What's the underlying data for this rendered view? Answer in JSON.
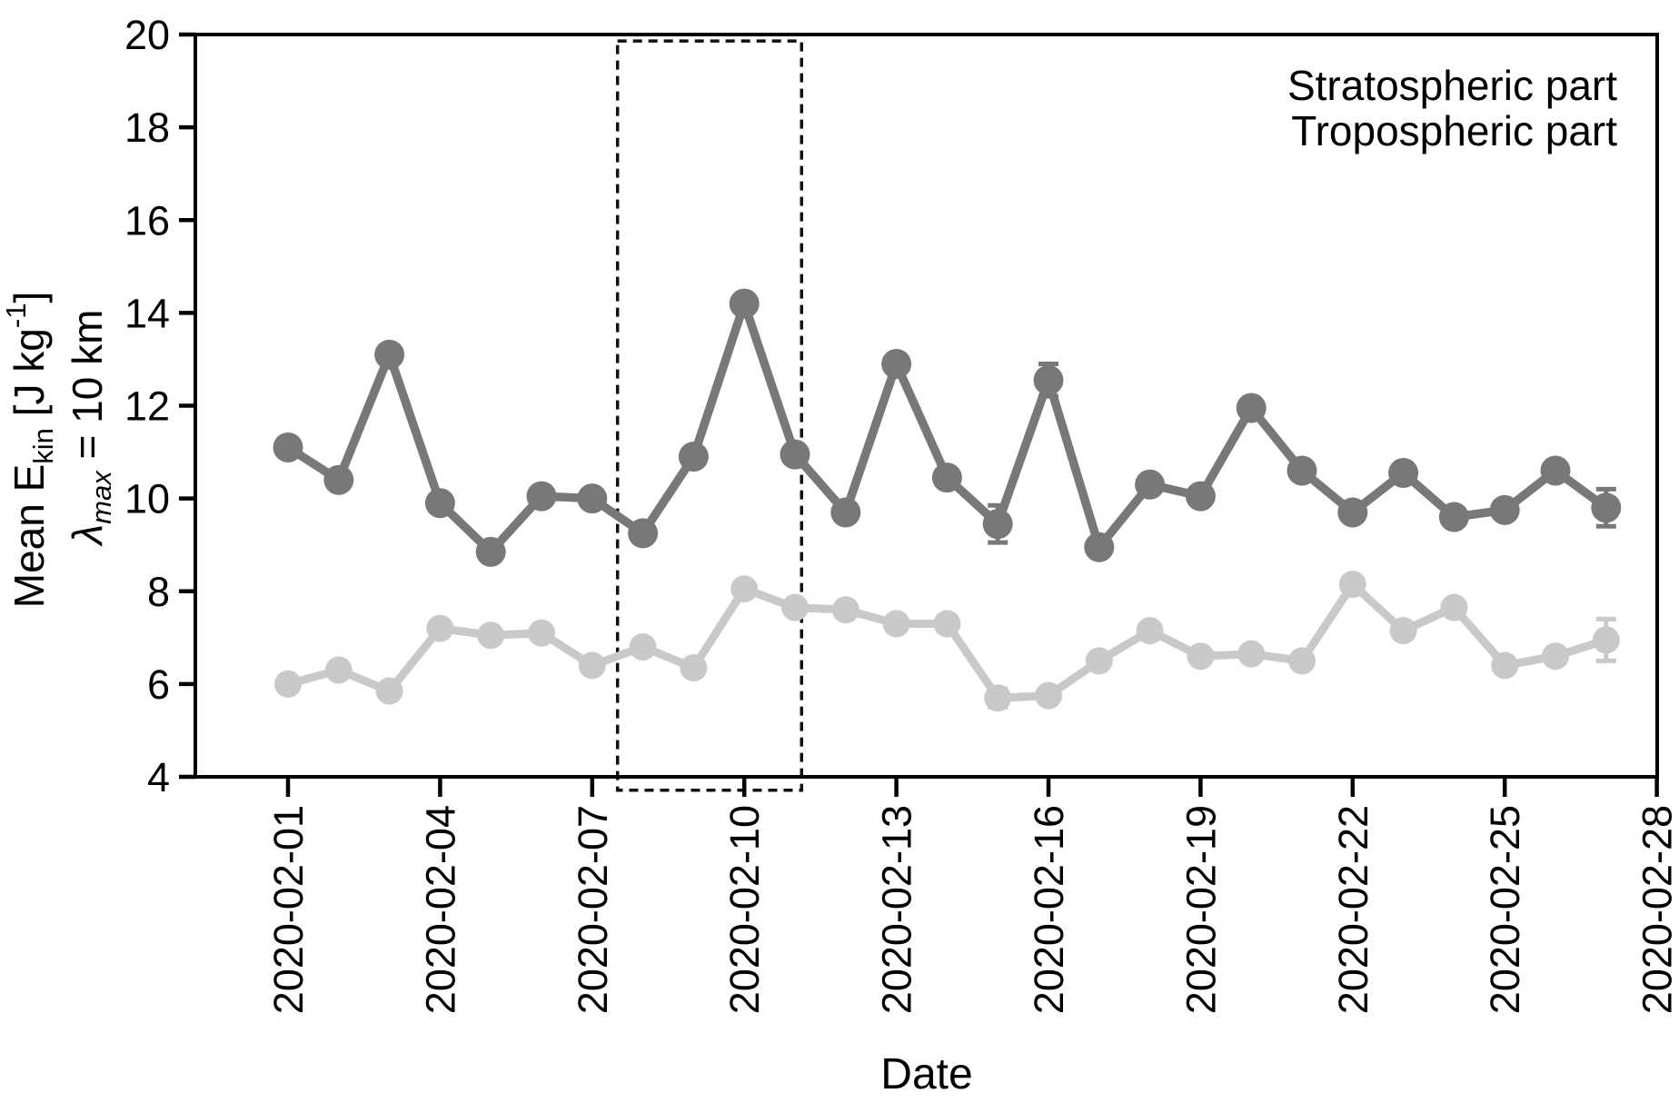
{
  "chart_data": {
    "type": "line",
    "title": "",
    "xlabel": "Date",
    "ylabel": {
      "line1_prefix": "Mean E",
      "line1_sub": "kin",
      "line1_mid": " [J kg",
      "line1_sup": "-1",
      "line1_suffix": "]",
      "line2_symbol": "λ",
      "line2_sub": "max",
      "line2_rest": " = 10 km"
    },
    "x_dates": [
      "2020-02-01",
      "2020-02-02",
      "2020-02-03",
      "2020-02-04",
      "2020-02-05",
      "2020-02-06",
      "2020-02-07",
      "2020-02-08",
      "2020-02-09",
      "2020-02-10",
      "2020-02-11",
      "2020-02-12",
      "2020-02-13",
      "2020-02-14",
      "2020-02-15",
      "2020-02-16",
      "2020-02-17",
      "2020-02-18",
      "2020-02-19",
      "2020-02-20",
      "2020-02-21",
      "2020-02-22",
      "2020-02-23",
      "2020-02-24",
      "2020-02-25",
      "2020-02-26",
      "2020-02-27"
    ],
    "xtick_labels": [
      "2020-02-01",
      "2020-02-04",
      "2020-02-07",
      "2020-02-10",
      "2020-02-13",
      "2020-02-16",
      "2020-02-19",
      "2020-02-22",
      "2020-02-25",
      "2020-02-28"
    ],
    "xtick_days": [
      1,
      4,
      7,
      10,
      13,
      16,
      19,
      22,
      25,
      28
    ],
    "yticks": [
      4,
      6,
      8,
      10,
      12,
      14,
      16,
      18,
      20
    ],
    "ylim": [
      4,
      20
    ],
    "grid": false,
    "legend_position": "top-right-inside",
    "series": [
      {
        "name": "Stratospheric part",
        "color": "#787878",
        "label_color": "#353535",
        "values": [
          11.1,
          10.4,
          13.1,
          9.9,
          8.85,
          10.05,
          10.0,
          9.25,
          10.9,
          14.2,
          10.95,
          9.7,
          12.9,
          10.45,
          9.45,
          12.55,
          8.95,
          10.3,
          10.05,
          11.95,
          10.6,
          9.7,
          10.55,
          9.6,
          9.75,
          10.6,
          9.8
        ],
        "errors": [
          0,
          0,
          0,
          0,
          0,
          0,
          0,
          0,
          0,
          0,
          0,
          0,
          0,
          0,
          0.4,
          0.35,
          0,
          0,
          0,
          0,
          0,
          0,
          0,
          0,
          0,
          0,
          0.4
        ]
      },
      {
        "name": "Tropospheric part",
        "color": "#c9c9c9",
        "label_color": "#bfbfbf",
        "values": [
          6.0,
          6.3,
          5.85,
          7.2,
          7.05,
          7.1,
          6.4,
          6.8,
          6.35,
          8.05,
          7.65,
          7.6,
          7.3,
          7.3,
          5.7,
          5.75,
          6.5,
          7.15,
          6.6,
          6.65,
          6.5,
          8.15,
          7.15,
          7.65,
          6.4,
          6.6,
          6.95
        ],
        "errors": [
          0,
          0,
          0,
          0,
          0,
          0,
          0,
          0,
          0,
          0,
          0,
          0,
          0,
          0,
          0.2,
          0,
          0,
          0,
          0,
          0,
          0,
          0,
          0,
          0,
          0,
          0,
          0.45
        ]
      }
    ],
    "highlight_box": {
      "day_start": 7.5,
      "day_end": 11.13,
      "value_top": 19.86,
      "value_bottom": 3.71,
      "style": "dashed"
    }
  },
  "colors": {
    "axis": "#000000",
    "background": "#ffffff",
    "highlight_box_stroke": "#111111"
  }
}
